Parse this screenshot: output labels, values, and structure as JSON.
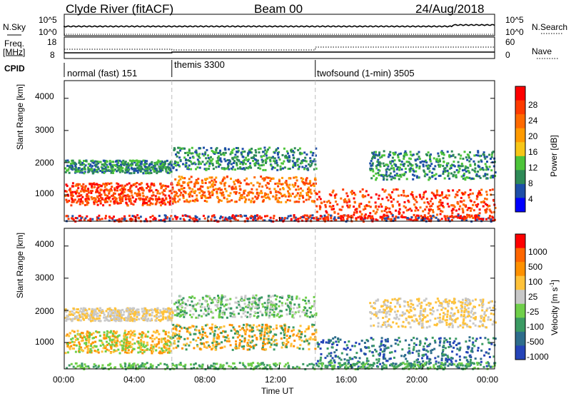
{
  "header": {
    "station": "Clyde River (fitACF)",
    "beam": "Beam 00",
    "date": "24/Aug/2018"
  },
  "top_panels": {
    "nsky_label": "N.Sky",
    "nsky_ticks": [
      "10^5",
      "10^0"
    ],
    "nsearch_label": "N.Search",
    "nsearch_ticks": [
      "10^5",
      "10^0"
    ],
    "freq_label_1": "Freq.",
    "freq_label_2": "[MHz]",
    "freq_ticks": [
      "18",
      "8"
    ],
    "nave_label": "Nave",
    "nave_ticks": [
      "60",
      "0"
    ],
    "cpid_label": "CPID",
    "cpid_modes": [
      {
        "label": "normal (fast) 151",
        "start_hour": 0
      },
      {
        "label": "themis 3300",
        "start_hour": 6
      },
      {
        "label": "twofsound (1-min) 3505",
        "start_hour": 14
      }
    ]
  },
  "chart_data": [
    {
      "type": "heatmap",
      "name": "power",
      "ylabel": "Slant Range [km]",
      "yticks": [
        "4000",
        "3000",
        "2000",
        "1000"
      ],
      "ylim": [
        180,
        4550
      ],
      "xlabel": "",
      "xlim": [
        0,
        24
      ],
      "colorbar_label": "Power [dB]",
      "colorbar_ticks": [
        "28",
        "24",
        "20",
        "16",
        "12",
        "8",
        "4"
      ],
      "colorbar_colors": [
        "#0000ff",
        "#1e4fa8",
        "#2e8a57",
        "#4dc43a",
        "#f7c617",
        "#ff9a00",
        "#ff6a00",
        "#ff3b00",
        "#ff0000"
      ],
      "vlines_hours": [
        6,
        14
      ]
    },
    {
      "type": "heatmap",
      "name": "velocity",
      "ylabel": "Slant Range [km]",
      "yticks": [
        "4000",
        "3000",
        "2000",
        "1000"
      ],
      "ylim": [
        180,
        4550
      ],
      "xlabel": "Time UT",
      "xticks": [
        "00:00",
        "04:00",
        "08:00",
        "12:00",
        "16:00",
        "20:00",
        "00:00"
      ],
      "xlim": [
        0,
        24
      ],
      "colorbar_label": "Velocity [m s",
      "colorbar_label_sup": "-1",
      "colorbar_label_end": "]",
      "colorbar_ticks": [
        "1000",
        "500",
        "100",
        "25",
        "-25",
        "-100",
        "-500",
        "-1000"
      ],
      "colorbar_colors": [
        "#2544b8",
        "#2e6d8c",
        "#3b9a63",
        "#6fcf4a",
        "#c8c8c8",
        "#ffc23a",
        "#ff9100",
        "#ff6600",
        "#ff0000"
      ],
      "vlines_hours": [
        6,
        14
      ]
    }
  ]
}
